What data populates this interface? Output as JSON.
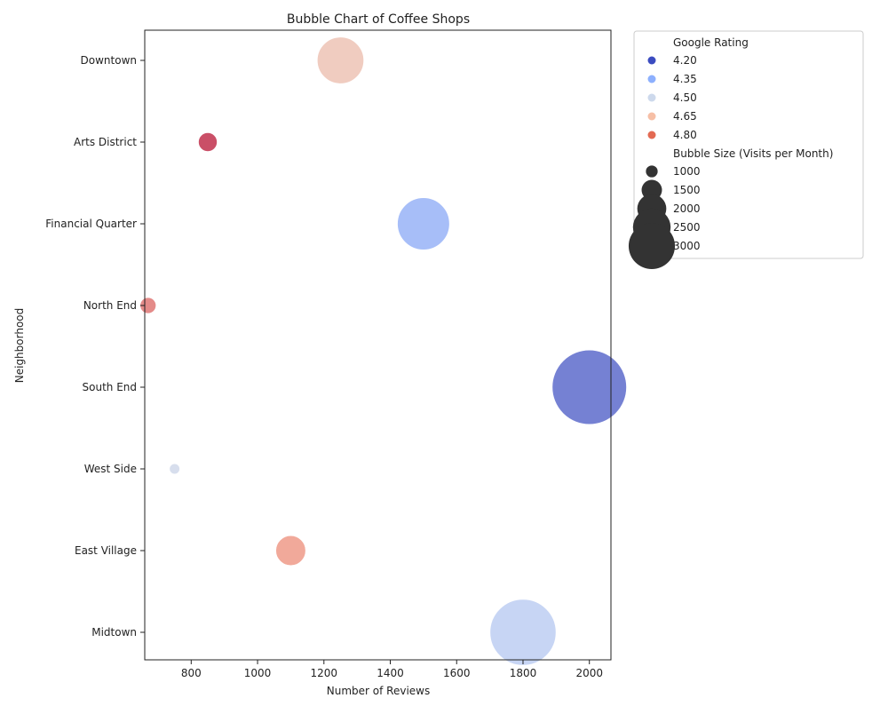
{
  "chart_data": {
    "type": "scatter",
    "title": "Bubble Chart of Coffee Shops",
    "xlabel": "Number of Reviews",
    "ylabel": "Neighborhood",
    "xlim": [
      660,
      2065
    ],
    "xticks": [
      800,
      1000,
      1200,
      1400,
      1600,
      1800,
      2000
    ],
    "categories": [
      "Downtown",
      "Arts District",
      "Financial Quarter",
      "North End",
      "South End",
      "West Side",
      "East Village",
      "Midtown"
    ],
    "points": [
      {
        "neighborhood": "Downtown",
        "reviews": 1250,
        "rating": 4.6,
        "visits": 2000
      },
      {
        "neighborhood": "Arts District",
        "reviews": 850,
        "rating": 4.85,
        "visits": 1000
      },
      {
        "neighborhood": "Financial Quarter",
        "reviews": 1500,
        "rating": 4.3,
        "visits": 2200
      },
      {
        "neighborhood": "North End",
        "reviews": 670,
        "rating": 4.75,
        "visits": 900
      },
      {
        "neighborhood": "South End",
        "reviews": 2000,
        "rating": 4.15,
        "visits": 3000
      },
      {
        "neighborhood": "West Side",
        "reviews": 750,
        "rating": 4.45,
        "visits": 700
      },
      {
        "neighborhood": "East Village",
        "reviews": 1100,
        "rating": 4.7,
        "visits": 1400
      },
      {
        "neighborhood": "Midtown",
        "reviews": 1800,
        "rating": 4.4,
        "visits": 2700
      }
    ],
    "color_legend": {
      "title": "Google Rating",
      "entries": [
        {
          "label": "4.20",
          "color": "#3b4cc0"
        },
        {
          "label": "4.35",
          "color": "#8db0fe"
        },
        {
          "label": "4.50",
          "color": "#cdd9ec"
        },
        {
          "label": "4.65",
          "color": "#f6bfa6"
        },
        {
          "label": "4.80",
          "color": "#e36a53"
        }
      ]
    },
    "size_legend": {
      "title": "Bubble Size (Visits per Month)",
      "entries": [
        {
          "label": "1000",
          "value": 1000
        },
        {
          "label": "1500",
          "value": 1500
        },
        {
          "label": "2000",
          "value": 2000
        },
        {
          "label": "2500",
          "value": 2500
        },
        {
          "label": "3000",
          "value": 3000
        }
      ]
    },
    "legend_position": "outside-right",
    "grid": false
  }
}
